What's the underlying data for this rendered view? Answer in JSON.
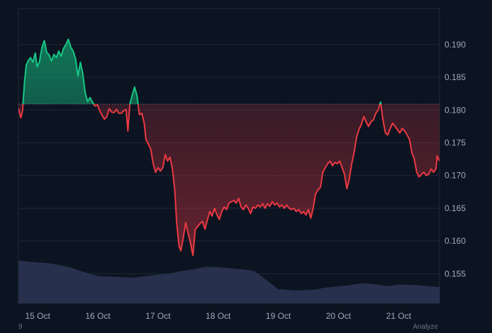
{
  "footer": {
    "left_text": "9",
    "right_text": "Analyze"
  },
  "colors": {
    "background": "#0d1421",
    "grid": "#1e2736",
    "up_line": "#16c784",
    "down_line": "#ea3943",
    "baseline": "#8a94a6",
    "volume": "#2d3553",
    "axis_text": "#a1a7bb"
  },
  "chart_data": {
    "type": "line",
    "title": "",
    "xlabel": "",
    "ylabel": "",
    "baseline": 0.1809,
    "ylim": [
      0.1505,
      0.1955
    ],
    "y_ticks": [
      0.155,
      0.16,
      0.165,
      0.17,
      0.175,
      0.18,
      0.185,
      0.19
    ],
    "y_tick_labels": [
      "0.155",
      "0.160",
      "0.165",
      "0.170",
      "0.175",
      "0.180",
      "0.185",
      "0.190"
    ],
    "x_range": [
      14.68,
      21.68
    ],
    "x_ticks": [
      15,
      16,
      17,
      18,
      19,
      20,
      21
    ],
    "x_tick_labels": [
      "15 Oct",
      "16 Oct",
      "17 Oct",
      "18 Oct",
      "19 Oct",
      "20 Oct",
      "21 Oct"
    ],
    "grid": true,
    "series": [
      {
        "values": [
          [
            14.68,
            0.1803
          ],
          [
            14.72,
            0.1788
          ],
          [
            14.75,
            0.18
          ],
          [
            14.78,
            0.1842
          ],
          [
            14.81,
            0.1868
          ],
          [
            14.84,
            0.1875
          ],
          [
            14.88,
            0.188
          ],
          [
            14.92,
            0.1873
          ],
          [
            14.96,
            0.1887
          ],
          [
            14.99,
            0.1866
          ],
          [
            15.03,
            0.1874
          ],
          [
            15.07,
            0.1895
          ],
          [
            15.11,
            0.1906
          ],
          [
            15.15,
            0.1888
          ],
          [
            15.19,
            0.1884
          ],
          [
            15.23,
            0.1875
          ],
          [
            15.27,
            0.1885
          ],
          [
            15.31,
            0.188
          ],
          [
            15.35,
            0.189
          ],
          [
            15.39,
            0.1882
          ],
          [
            15.43,
            0.1894
          ],
          [
            15.47,
            0.19
          ],
          [
            15.51,
            0.1908
          ],
          [
            15.55,
            0.1896
          ],
          [
            15.59,
            0.189
          ],
          [
            15.63,
            0.1878
          ],
          [
            15.67,
            0.1852
          ],
          [
            15.71,
            0.1873
          ],
          [
            15.75,
            0.1855
          ],
          [
            15.79,
            0.1826
          ],
          [
            15.83,
            0.1813
          ],
          [
            15.87,
            0.1819
          ],
          [
            15.91,
            0.1812
          ],
          [
            15.95,
            0.1806
          ],
          [
            15.99,
            0.1808
          ],
          [
            16.03,
            0.1799
          ],
          [
            16.07,
            0.1792
          ],
          [
            16.11,
            0.1786
          ],
          [
            16.15,
            0.179
          ],
          [
            16.19,
            0.1802
          ],
          [
            16.23,
            0.1797
          ],
          [
            16.27,
            0.1796
          ],
          [
            16.31,
            0.1801
          ],
          [
            16.35,
            0.1795
          ],
          [
            16.39,
            0.1795
          ],
          [
            16.43,
            0.1799
          ],
          [
            16.47,
            0.1801
          ],
          [
            16.5,
            0.1768
          ],
          [
            16.53,
            0.1808
          ],
          [
            16.57,
            0.1822
          ],
          [
            16.61,
            0.1835
          ],
          [
            16.65,
            0.1822
          ],
          [
            16.69,
            0.1793
          ],
          [
            16.73,
            0.1795
          ],
          [
            16.77,
            0.178
          ],
          [
            16.8,
            0.1755
          ],
          [
            16.84,
            0.1748
          ],
          [
            16.88,
            0.174
          ],
          [
            16.92,
            0.1718
          ],
          [
            16.96,
            0.1705
          ],
          [
            17.0,
            0.1712
          ],
          [
            17.04,
            0.1707
          ],
          [
            17.08,
            0.1712
          ],
          [
            17.12,
            0.1732
          ],
          [
            17.16,
            0.1722
          ],
          [
            17.2,
            0.1728
          ],
          [
            17.24,
            0.171
          ],
          [
            17.28,
            0.1677
          ],
          [
            17.31,
            0.1628
          ],
          [
            17.35,
            0.1592
          ],
          [
            17.38,
            0.1585
          ],
          [
            17.42,
            0.1605
          ],
          [
            17.46,
            0.1628
          ],
          [
            17.5,
            0.1612
          ],
          [
            17.54,
            0.1597
          ],
          [
            17.58,
            0.1578
          ],
          [
            17.62,
            0.1618
          ],
          [
            17.66,
            0.1622
          ],
          [
            17.7,
            0.1627
          ],
          [
            17.74,
            0.163
          ],
          [
            17.78,
            0.1618
          ],
          [
            17.82,
            0.1632
          ],
          [
            17.86,
            0.1645
          ],
          [
            17.9,
            0.1638
          ],
          [
            17.94,
            0.165
          ],
          [
            17.98,
            0.164
          ],
          [
            18.02,
            0.1633
          ],
          [
            18.06,
            0.1645
          ],
          [
            18.1,
            0.1652
          ],
          [
            18.14,
            0.1648
          ],
          [
            18.18,
            0.1658
          ],
          [
            18.22,
            0.166
          ],
          [
            18.26,
            0.1662
          ],
          [
            18.3,
            0.1658
          ],
          [
            18.34,
            0.1665
          ],
          [
            18.38,
            0.1652
          ],
          [
            18.42,
            0.1648
          ],
          [
            18.46,
            0.1655
          ],
          [
            18.5,
            0.165
          ],
          [
            18.54,
            0.1642
          ],
          [
            18.58,
            0.1652
          ],
          [
            18.62,
            0.165
          ],
          [
            18.66,
            0.1655
          ],
          [
            18.7,
            0.1652
          ],
          [
            18.74,
            0.1657
          ],
          [
            18.78,
            0.165
          ],
          [
            18.82,
            0.1657
          ],
          [
            18.86,
            0.1653
          ],
          [
            18.9,
            0.166
          ],
          [
            18.94,
            0.1655
          ],
          [
            18.98,
            0.1658
          ],
          [
            19.02,
            0.1652
          ],
          [
            19.06,
            0.1655
          ],
          [
            19.1,
            0.165
          ],
          [
            19.14,
            0.1655
          ],
          [
            19.18,
            0.165
          ],
          [
            19.22,
            0.1648
          ],
          [
            19.26,
            0.165
          ],
          [
            19.3,
            0.1645
          ],
          [
            19.34,
            0.1648
          ],
          [
            19.38,
            0.1642
          ],
          [
            19.42,
            0.1645
          ],
          [
            19.46,
            0.164
          ],
          [
            19.5,
            0.1648
          ],
          [
            19.54,
            0.1635
          ],
          [
            19.58,
            0.165
          ],
          [
            19.62,
            0.1672
          ],
          [
            19.66,
            0.1678
          ],
          [
            19.7,
            0.1682
          ],
          [
            19.74,
            0.1705
          ],
          [
            19.78,
            0.1712
          ],
          [
            19.82,
            0.1718
          ],
          [
            19.86,
            0.1722
          ],
          [
            19.9,
            0.1715
          ],
          [
            19.94,
            0.172
          ],
          [
            19.98,
            0.1718
          ],
          [
            20.02,
            0.1722
          ],
          [
            20.06,
            0.1712
          ],
          [
            20.1,
            0.1702
          ],
          [
            20.14,
            0.168
          ],
          [
            20.18,
            0.1695
          ],
          [
            20.22,
            0.1718
          ],
          [
            20.26,
            0.1735
          ],
          [
            20.3,
            0.1758
          ],
          [
            20.34,
            0.177
          ],
          [
            20.38,
            0.1778
          ],
          [
            20.42,
            0.179
          ],
          [
            20.46,
            0.1782
          ],
          [
            20.5,
            0.1775
          ],
          [
            20.54,
            0.1782
          ],
          [
            20.58,
            0.1785
          ],
          [
            20.62,
            0.1795
          ],
          [
            20.66,
            0.18
          ],
          [
            20.7,
            0.1812
          ],
          [
            20.74,
            0.1785
          ],
          [
            20.78,
            0.1765
          ],
          [
            20.82,
            0.1762
          ],
          [
            20.86,
            0.1772
          ],
          [
            20.9,
            0.178
          ],
          [
            20.94,
            0.1775
          ],
          [
            20.98,
            0.177
          ],
          [
            21.02,
            0.1765
          ],
          [
            21.06,
            0.1772
          ],
          [
            21.1,
            0.1768
          ],
          [
            21.14,
            0.1762
          ],
          [
            21.18,
            0.1755
          ],
          [
            21.22,
            0.1735
          ],
          [
            21.26,
            0.1725
          ],
          [
            21.3,
            0.1705
          ],
          [
            21.34,
            0.1698
          ],
          [
            21.38,
            0.1702
          ],
          [
            21.42,
            0.1705
          ],
          [
            21.46,
            0.17
          ],
          [
            21.5,
            0.1702
          ],
          [
            21.54,
            0.171
          ],
          [
            21.58,
            0.1705
          ],
          [
            21.62,
            0.171
          ],
          [
            21.64,
            0.173
          ],
          [
            21.68,
            0.1722
          ]
        ]
      }
    ],
    "volume": [
      [
        14.68,
        1.0
      ],
      [
        14.9,
        0.97
      ],
      [
        15.2,
        0.94
      ],
      [
        15.5,
        0.86
      ],
      [
        15.8,
        0.72
      ],
      [
        16.0,
        0.64
      ],
      [
        16.3,
        0.62
      ],
      [
        16.6,
        0.6
      ],
      [
        16.8,
        0.64
      ],
      [
        17.0,
        0.67
      ],
      [
        17.2,
        0.7
      ],
      [
        17.4,
        0.76
      ],
      [
        17.6,
        0.8
      ],
      [
        17.8,
        0.86
      ],
      [
        18.0,
        0.85
      ],
      [
        18.2,
        0.82
      ],
      [
        18.4,
        0.8
      ],
      [
        18.6,
        0.76
      ],
      [
        18.8,
        0.55
      ],
      [
        19.0,
        0.33
      ],
      [
        19.3,
        0.3
      ],
      [
        19.6,
        0.32
      ],
      [
        19.8,
        0.37
      ],
      [
        20.0,
        0.4
      ],
      [
        20.2,
        0.43
      ],
      [
        20.4,
        0.47
      ],
      [
        20.6,
        0.45
      ],
      [
        20.8,
        0.4
      ],
      [
        21.0,
        0.44
      ],
      [
        21.3,
        0.43
      ],
      [
        21.68,
        0.38
      ]
    ]
  }
}
